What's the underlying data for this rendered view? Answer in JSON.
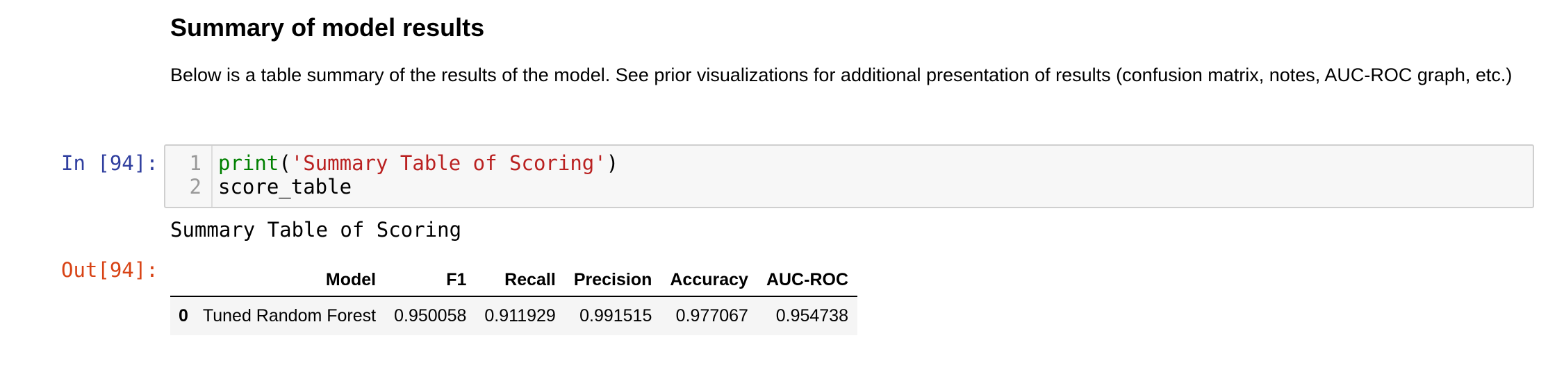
{
  "markdown": {
    "heading": "Summary of model results",
    "paragraph": "Below is a table summary of the results of the model. See prior visualizations for additional presentation of results (confusion matrix, notes, AUC-ROC graph, etc.)"
  },
  "code_cell": {
    "in_prompt": "In [94]:",
    "line_numbers": [
      "1",
      "2"
    ],
    "line1": {
      "func": "print",
      "open": "(",
      "string": "'Summary Table of Scoring'",
      "close": ")"
    },
    "line2": "score_table"
  },
  "output": {
    "out_prompt": "Out[94]:",
    "stdout": "Summary Table of Scoring",
    "table": {
      "columns": [
        "Model",
        "F1",
        "Recall",
        "Precision",
        "Accuracy",
        "AUC-ROC"
      ],
      "rows": [
        {
          "index": "0",
          "cells": [
            "Tuned Random Forest",
            "0.950058",
            "0.911929",
            "0.991515",
            "0.977067",
            "0.954738"
          ]
        }
      ]
    }
  },
  "colors": {
    "in_prompt": "#303f9f",
    "out_prompt": "#d84315",
    "code_builtin": "#008000",
    "code_string": "#ba2121"
  }
}
